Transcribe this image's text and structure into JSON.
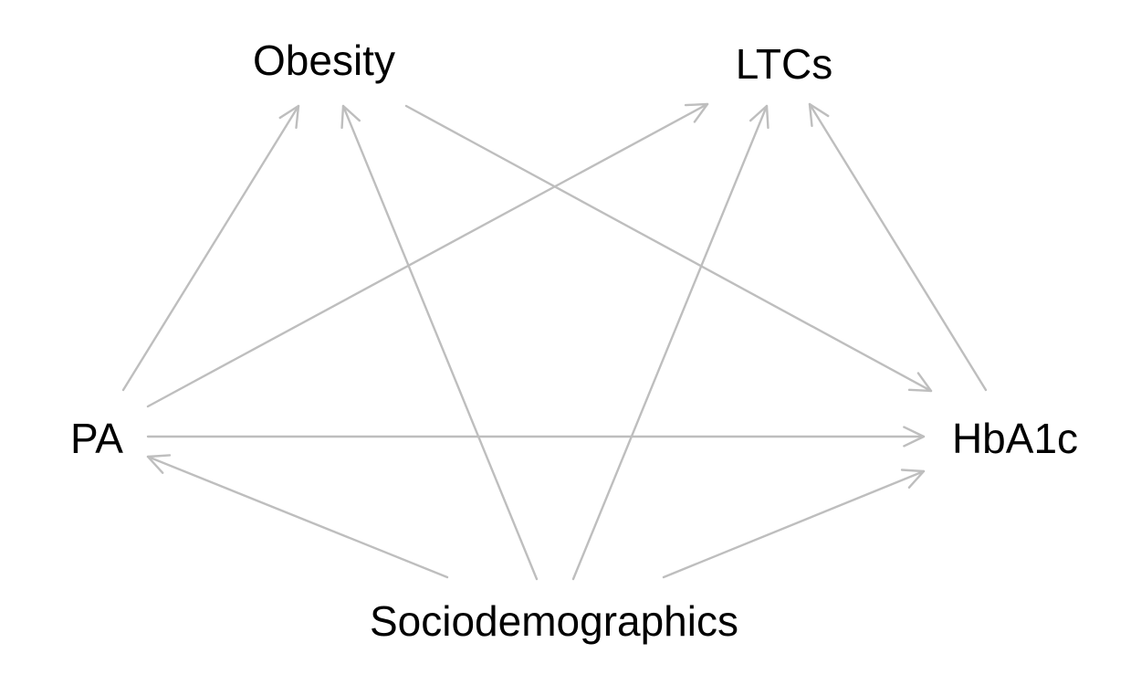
{
  "diagram": {
    "type": "directed-acyclic-graph",
    "edge_color": "#bebebe",
    "text_color": "#000000",
    "background": "#ffffff",
    "nodes": [
      {
        "id": "obesity",
        "label": "Obesity"
      },
      {
        "id": "ltcs",
        "label": "LTCs"
      },
      {
        "id": "pa",
        "label": "PA"
      },
      {
        "id": "hba1c",
        "label": "HbA1c"
      },
      {
        "id": "sociodemographics",
        "label": "Sociodemographics"
      }
    ],
    "edges": [
      {
        "from": "pa",
        "to": "obesity"
      },
      {
        "from": "pa",
        "to": "ltcs"
      },
      {
        "from": "pa",
        "to": "hba1c"
      },
      {
        "from": "obesity",
        "to": "hba1c"
      },
      {
        "from": "hba1c",
        "to": "ltcs"
      },
      {
        "from": "sociodemographics",
        "to": "pa"
      },
      {
        "from": "sociodemographics",
        "to": "obesity"
      },
      {
        "from": "sociodemographics",
        "to": "ltcs"
      },
      {
        "from": "sociodemographics",
        "to": "hba1c"
      }
    ]
  }
}
